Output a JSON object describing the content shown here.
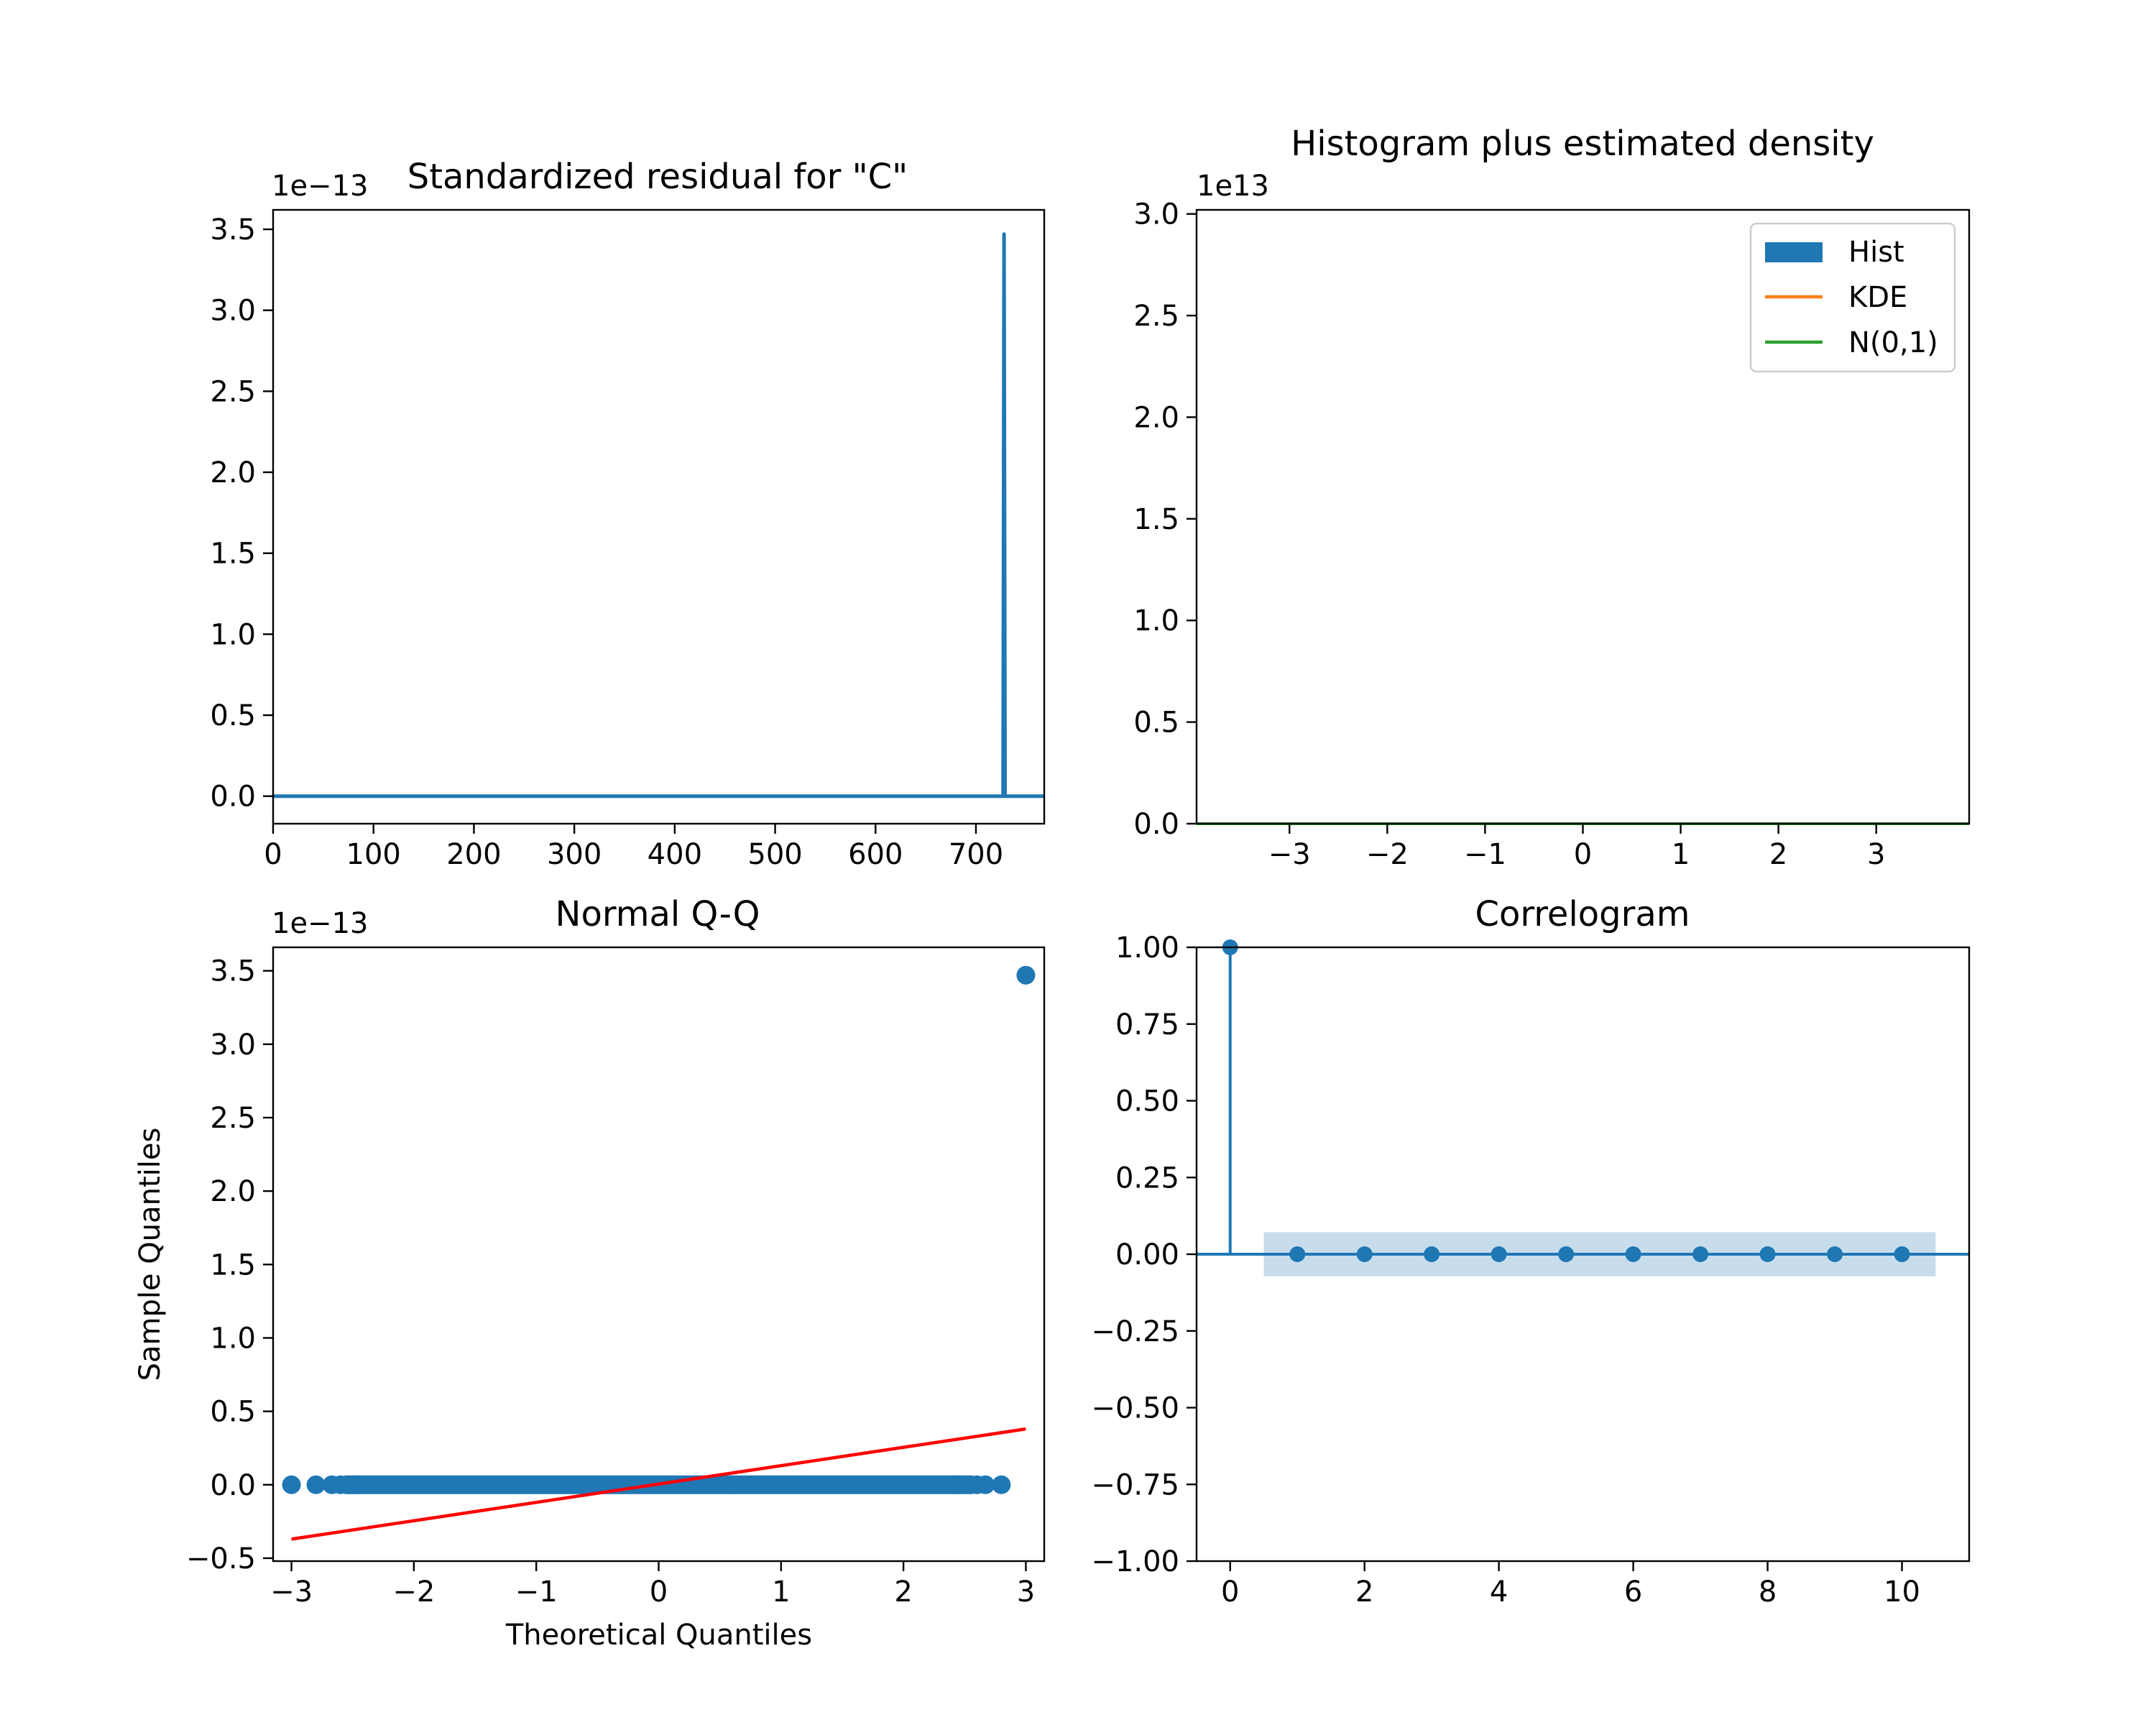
{
  "chart_data": [
    {
      "id": "residual",
      "type": "line",
      "title": "Standardized residual for \"C\"",
      "xlabel": "",
      "ylabel": "",
      "y_offset_text": "1e−13",
      "xlim": [
        0,
        768
      ],
      "ylim": [
        -0.17,
        3.62
      ],
      "x_ticks": [
        0,
        100,
        200,
        300,
        400,
        500,
        600,
        700
      ],
      "y_ticks": [
        0.0,
        0.5,
        1.0,
        1.5,
        2.0,
        2.5,
        3.0,
        3.5
      ],
      "y_tick_labels": [
        "0.0",
        "0.5",
        "1.0",
        "1.5",
        "2.0",
        "2.5",
        "3.0",
        "3.5"
      ],
      "series": [
        {
          "color": "#1f77b4",
          "points": [
            [
              0,
              0
            ],
            [
              727,
              0
            ],
            [
              728,
              3.47
            ],
            [
              729,
              0
            ],
            [
              768,
              0
            ]
          ]
        }
      ],
      "grid": false
    },
    {
      "id": "histogram",
      "type": "line",
      "title": "Histogram plus estimated density",
      "xlabel": "",
      "ylabel": "",
      "y_offset_text": "1e13",
      "xlim": [
        -3.95,
        3.95
      ],
      "ylim": [
        0,
        3.02
      ],
      "x_ticks": [
        -3,
        -2,
        -1,
        0,
        1,
        2,
        3
      ],
      "x_tick_labels": [
        "−3",
        "−2",
        "−1",
        "0",
        "1",
        "2",
        "3"
      ],
      "y_ticks": [
        0.0,
        0.5,
        1.0,
        1.5,
        2.0,
        2.5,
        3.0
      ],
      "y_tick_labels": [
        "0.0",
        "0.5",
        "1.0",
        "1.5",
        "2.0",
        "2.5",
        "3.0"
      ],
      "legend": {
        "position": "top-right",
        "entries": [
          {
            "label": "Hist",
            "kind": "patch",
            "color": "#1f77b4"
          },
          {
            "label": "KDE",
            "kind": "line",
            "color": "#ff7f0e"
          },
          {
            "label": "N(0,1)",
            "kind": "line",
            "color": "#2ca02c"
          }
        ]
      },
      "series": [
        {
          "name": "N(0,1)",
          "color": "#2ca02c",
          "points": [
            [
              -3.95,
              0
            ],
            [
              3.95,
              0
            ]
          ]
        }
      ],
      "grid": false
    },
    {
      "id": "qq",
      "type": "scatter",
      "title": "Normal Q-Q",
      "xlabel": "Theoretical Quantiles",
      "ylabel": "Sample Quantiles",
      "y_offset_text": "1e−13",
      "xlim": [
        -3.15,
        3.15
      ],
      "ylim": [
        -0.52,
        3.66
      ],
      "x_ticks": [
        -3,
        -2,
        -1,
        0,
        1,
        2,
        3
      ],
      "x_tick_labels": [
        "−3",
        "−2",
        "−1",
        "0",
        "1",
        "2",
        "3"
      ],
      "y_ticks": [
        -0.5,
        0.0,
        0.5,
        1.0,
        1.5,
        2.0,
        2.5,
        3.0,
        3.5
      ],
      "y_tick_labels": [
        "−0.5",
        "0.0",
        "0.5",
        "1.0",
        "1.5",
        "2.0",
        "2.5",
        "3.0",
        "3.5"
      ],
      "points_color": "#1f77b4",
      "point_x": [
        -3.0,
        -2.8,
        -2.67,
        -2.6,
        -2.55,
        -2.5,
        -2.45,
        -2.4,
        -2.33,
        -2.25,
        -2.15,
        -2.0,
        -1.8,
        -1.5,
        -1.2,
        -0.9,
        -0.6,
        -0.3,
        0.0,
        0.3,
        0.6,
        0.9,
        1.2,
        1.5,
        1.8,
        2.0,
        2.15,
        2.25,
        2.33,
        2.4,
        2.45,
        2.5,
        2.55,
        2.6,
        2.67,
        2.8
      ],
      "point_y": 0,
      "outlier": [
        3.0,
        3.47
      ],
      "dense_band": [
        -2.62,
        2.62
      ],
      "reference_line": {
        "color": "#ff0000",
        "points": [
          [
            -3.0,
            -0.37
          ],
          [
            3.0,
            0.38
          ]
        ]
      },
      "grid": false
    },
    {
      "id": "correlogram",
      "type": "stem",
      "title": "Correlogram",
      "xlabel": "",
      "ylabel": "",
      "xlim": [
        -0.5,
        11.0
      ],
      "ylim": [
        -1.0,
        1.0
      ],
      "x_ticks": [
        0,
        2,
        4,
        6,
        8,
        10
      ],
      "y_ticks": [
        -1.0,
        -0.75,
        -0.5,
        -0.25,
        0.0,
        0.25,
        0.5,
        0.75,
        1.0
      ],
      "y_tick_labels": [
        "−1.00",
        "−0.75",
        "−0.50",
        "−0.25",
        "0.00",
        "0.25",
        "0.50",
        "0.75",
        "1.00"
      ],
      "lags": [
        0,
        1,
        2,
        3,
        4,
        5,
        6,
        7,
        8,
        9,
        10
      ],
      "acf": [
        1.0,
        0,
        0,
        0,
        0,
        0,
        0,
        0,
        0,
        0,
        0
      ],
      "confidence_band": {
        "x_range": [
          0.5,
          10.5
        ],
        "half_width": 0.072,
        "color": "#1f77b4"
      },
      "color": "#1f77b4",
      "grid": false
    }
  ]
}
